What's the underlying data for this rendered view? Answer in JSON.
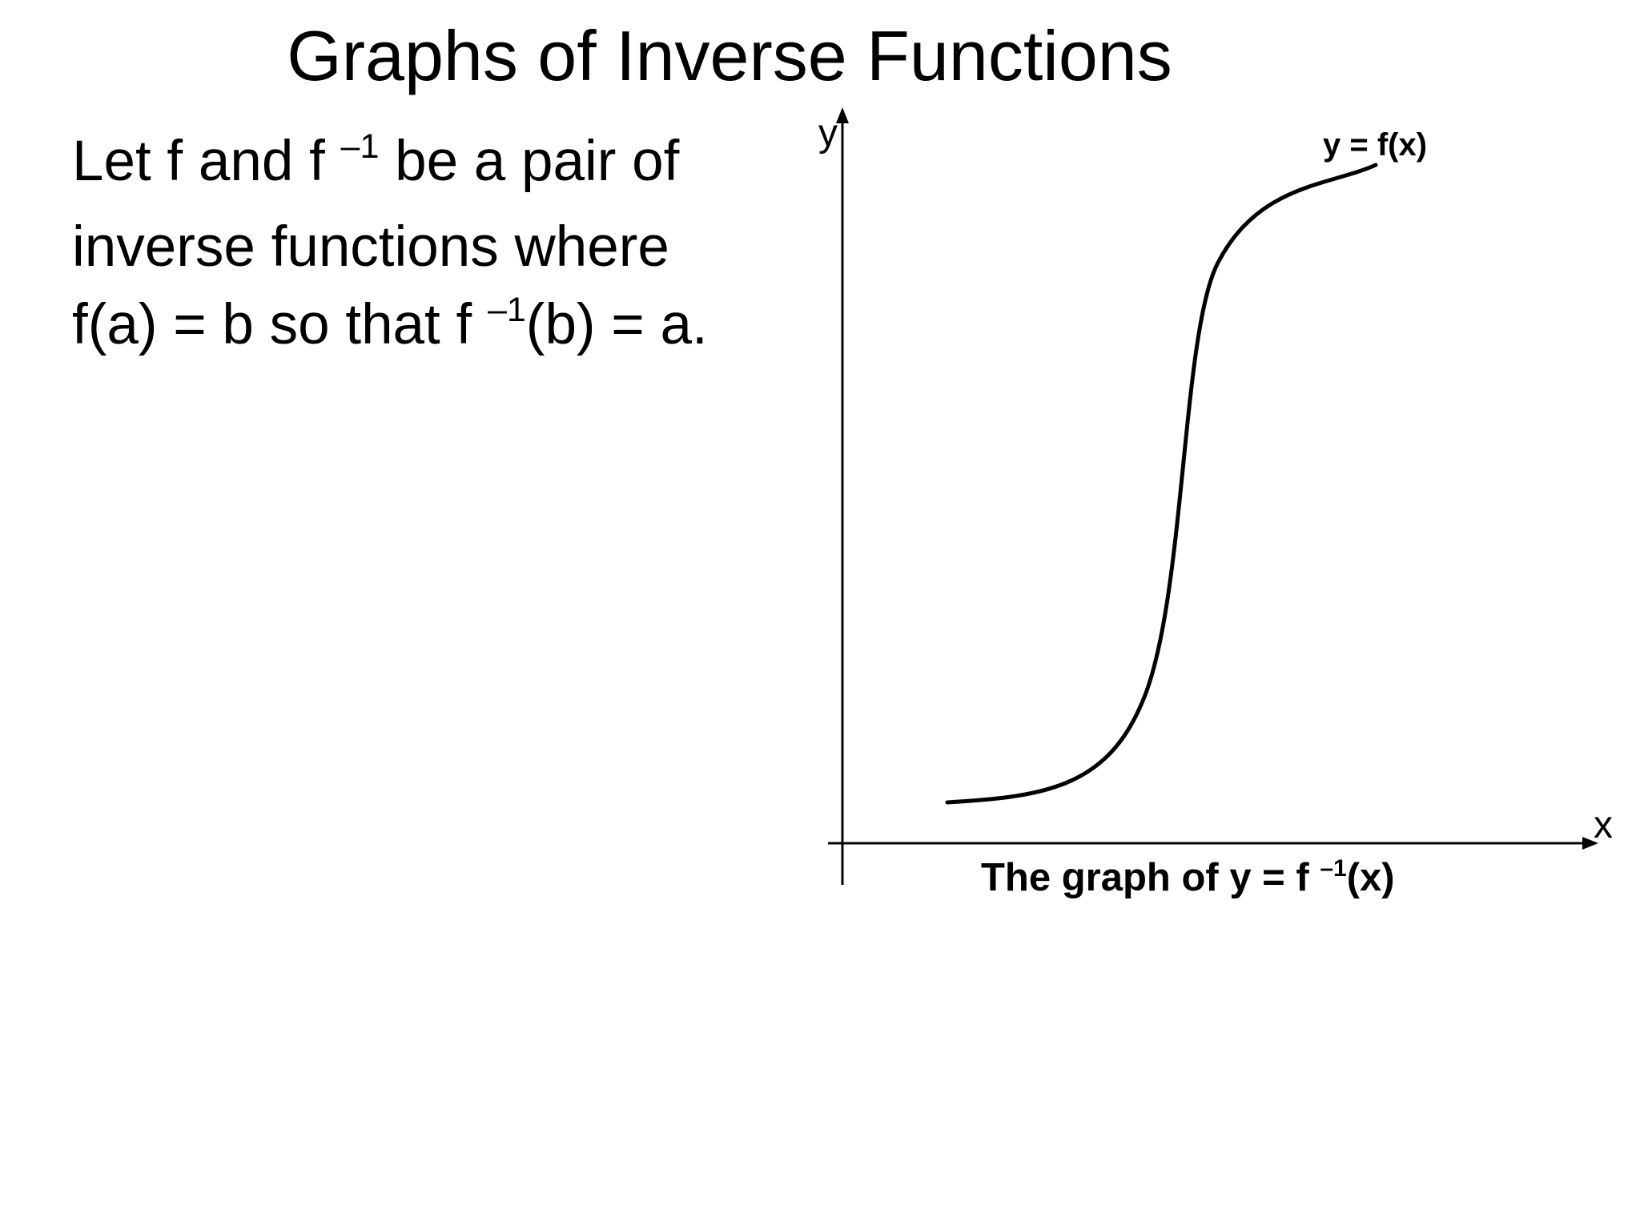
{
  "slide": {
    "title": "Graphs of Inverse Functions",
    "intro": {
      "line1_a": "Let f and f ",
      "line1_sup": "–1",
      "line1_b": " be a pair of",
      "line2": "inverse functions where",
      "line3_a": "f(a) = b so that f ",
      "line3_sup": "–1",
      "line3_b": "(b) = a."
    }
  },
  "graph": {
    "x_axis_letter": "x",
    "y_axis_letter": "y",
    "curve_label": "y = f(x)",
    "caption_a": "The graph of y = f ",
    "caption_sup": "–1",
    "caption_b": "(x)",
    "colors": {
      "ink": "#000000",
      "background": "#ffffff"
    }
  }
}
